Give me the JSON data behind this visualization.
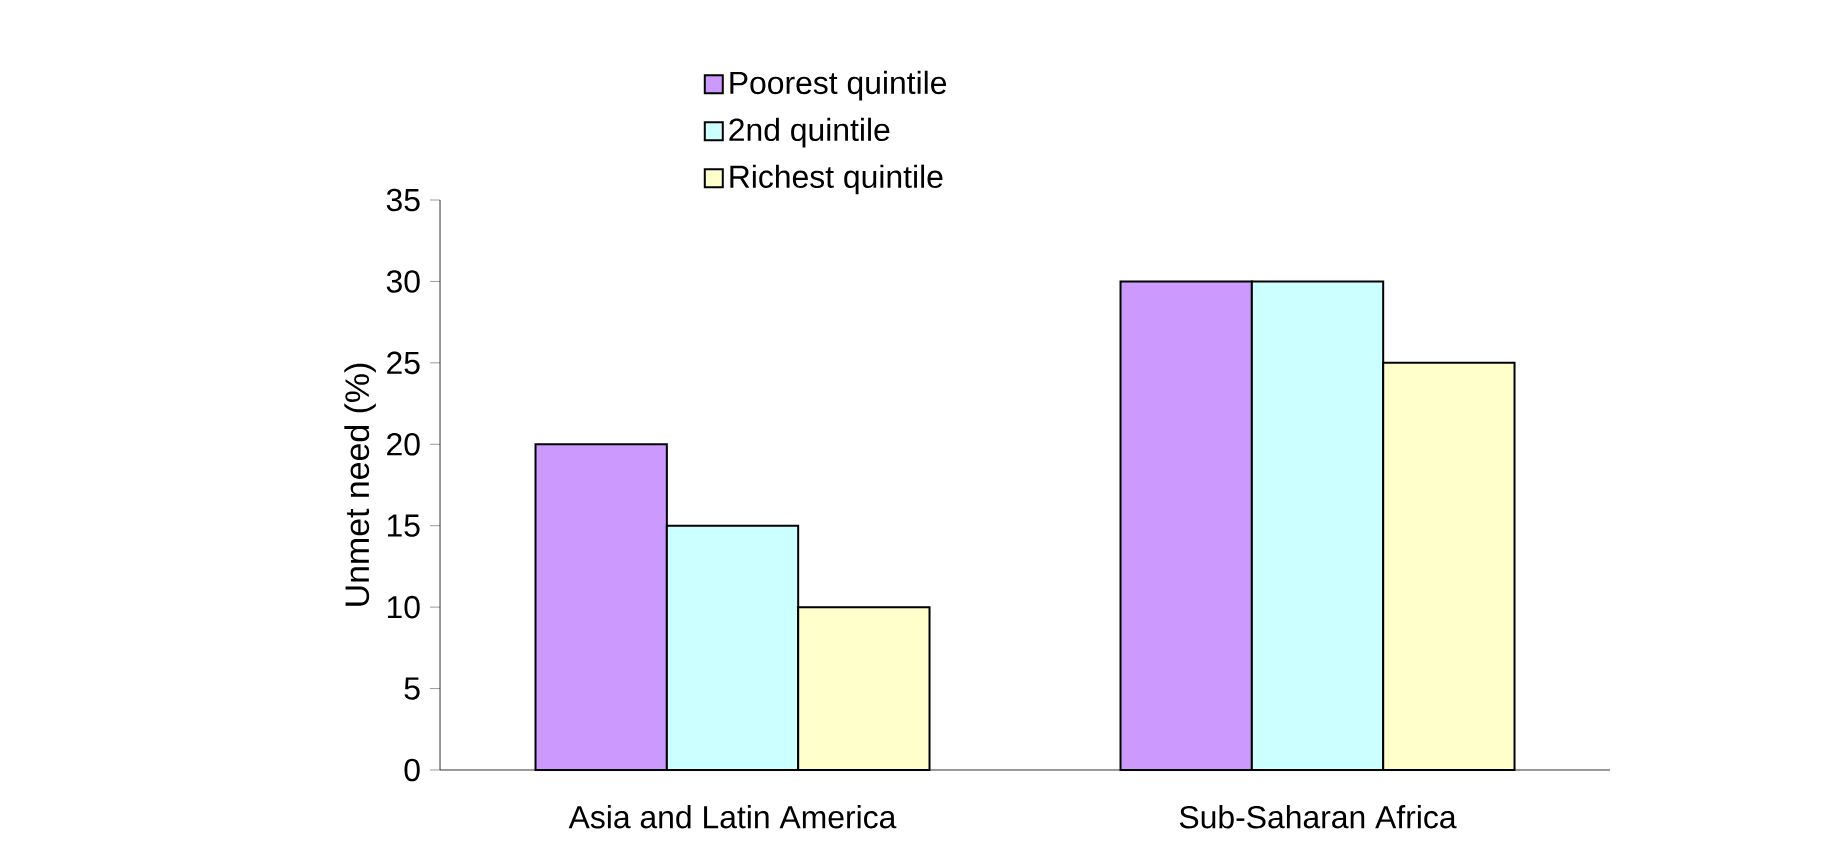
{
  "chart_data": {
    "type": "bar",
    "ylabel": "Unmet need (%)",
    "categories": [
      "Asia and Latin America",
      "Sub-Saharan Africa"
    ],
    "series": [
      {
        "name": "Poorest quintile",
        "color": "#cc99ff",
        "values": [
          20,
          30
        ]
      },
      {
        "name": "2nd quintile",
        "color": "#ccffff",
        "values": [
          15,
          30
        ]
      },
      {
        "name": "Richest quintile",
        "color": "#ffffcc",
        "values": [
          10,
          25
        ]
      }
    ],
    "ylim": [
      0,
      35
    ],
    "yticks": [
      0,
      5,
      10,
      15,
      20,
      25,
      30,
      35
    ],
    "grid": false,
    "legend": "top"
  }
}
